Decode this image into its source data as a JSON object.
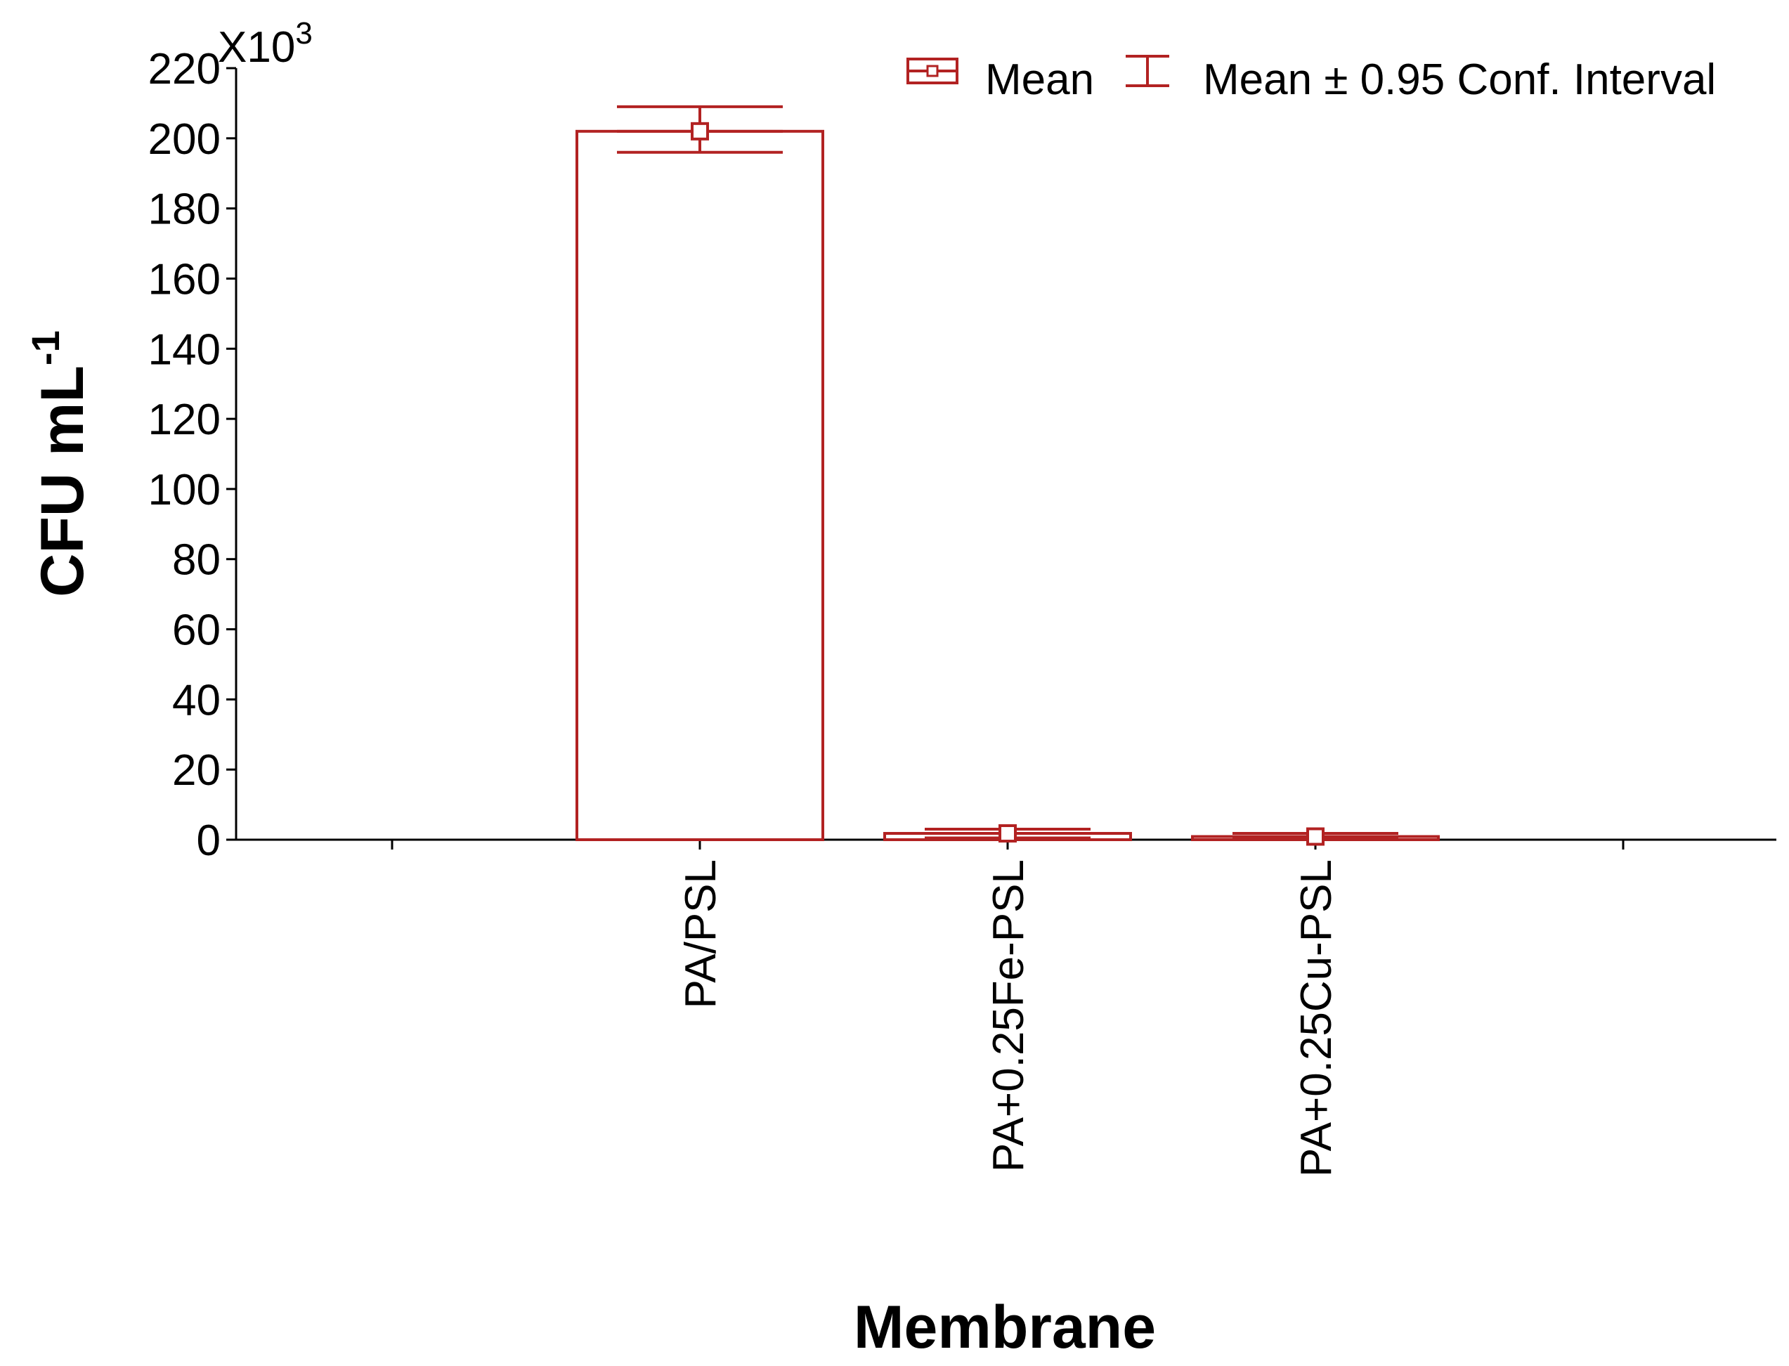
{
  "colors": {
    "series": "#b22222",
    "axis": "#000000",
    "background": "#ffffff"
  },
  "legend": {
    "mean_label": "Mean",
    "ci_label": "Mean ± 0.95 Conf. Interval",
    "mean_icon": "box-with-point-icon",
    "ci_icon": "error-bar-icon"
  },
  "chart_data": {
    "type": "bar",
    "xlabel": "Membrane",
    "ylabel_main": "CFU mL",
    "ylabel_sup": "-1",
    "y_multiplier_base": "X10",
    "y_multiplier_exp": "3",
    "ylim": [
      0,
      220
    ],
    "yticks": [
      0,
      20,
      40,
      60,
      80,
      100,
      120,
      140,
      160,
      180,
      200,
      220
    ],
    "categories": [
      "PA/PSL",
      "PA+0.25Fe-PSL",
      "PA+0.25Cu-PSL"
    ],
    "series": [
      {
        "name": "Mean",
        "values": [
          202,
          1.8,
          0.9
        ],
        "ci_low": [
          196,
          0.5,
          0.2
        ],
        "ci_high": [
          209,
          3.0,
          1.8
        ]
      }
    ],
    "grid": false,
    "legend_position": "top-right"
  }
}
